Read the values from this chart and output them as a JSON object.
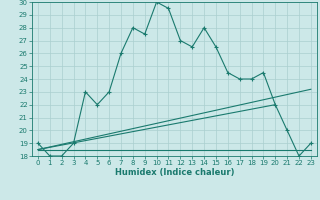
{
  "title": "",
  "xlabel": "Humidex (Indice chaleur)",
  "background_color": "#cce8e8",
  "line_color": "#1a7a6e",
  "grid_color": "#aacfcf",
  "xlim": [
    -0.5,
    23.5
  ],
  "ylim": [
    18,
    30
  ],
  "yticks": [
    18,
    19,
    20,
    21,
    22,
    23,
    24,
    25,
    26,
    27,
    28,
    29,
    30
  ],
  "xticks": [
    0,
    1,
    2,
    3,
    4,
    5,
    6,
    7,
    8,
    9,
    10,
    11,
    12,
    13,
    14,
    15,
    16,
    17,
    18,
    19,
    20,
    21,
    22,
    23
  ],
  "main_line_x": [
    0,
    1,
    2,
    3,
    4,
    5,
    6,
    7,
    8,
    9,
    10,
    11,
    12,
    13,
    14,
    15,
    16,
    17,
    18,
    19,
    20,
    21,
    22,
    23
  ],
  "main_line_y": [
    19,
    18,
    18,
    19,
    23,
    22,
    23,
    26,
    28,
    27.5,
    30,
    29.5,
    27,
    26.5,
    28,
    26.5,
    24.5,
    24,
    24,
    24.5,
    22,
    20,
    18,
    19
  ],
  "line2_x": [
    0,
    23
  ],
  "line2_y": [
    18.5,
    18.5
  ],
  "line3_x": [
    0,
    20
  ],
  "line3_y": [
    18.5,
    22
  ],
  "line4_x": [
    0,
    23
  ],
  "line4_y": [
    18.5,
    23.2
  ]
}
